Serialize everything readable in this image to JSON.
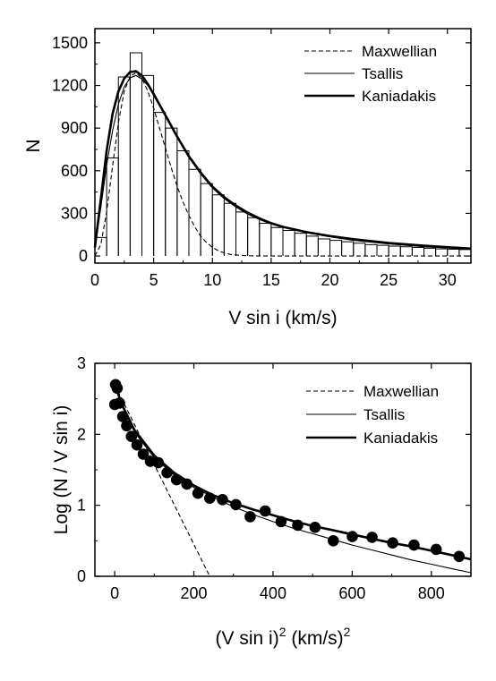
{
  "chart_data": [
    {
      "type": "bar",
      "xlabel": "V sin i (km/s)",
      "ylabel": "N",
      "xlim": [
        0,
        32
      ],
      "ylim": [
        -50,
        1600
      ],
      "xticks": [
        "0",
        "5",
        "10",
        "15",
        "20",
        "25",
        "30"
      ],
      "yticks": [
        "0",
        "300",
        "600",
        "900",
        "1200",
        "1500"
      ],
      "grid": false,
      "legend": "top-right",
      "histogram": {
        "bin_width": 1,
        "x": [
          0.5,
          1.5,
          2.5,
          3.5,
          4.5,
          5.5,
          6.5,
          7.5,
          8.5,
          9.5,
          10.5,
          11.5,
          12.5,
          13.5,
          14.5,
          15.5,
          16.5,
          17.5,
          18.5,
          19.5,
          20.5,
          21.5,
          22.5,
          23.5,
          24.5,
          25.5,
          26.5,
          27.5,
          28.5,
          29.5,
          30.5,
          31.5
        ],
        "values": [
          130,
          690,
          1260,
          1430,
          1270,
          1010,
          900,
          740,
          610,
          510,
          430,
          370,
          310,
          270,
          230,
          200,
          180,
          160,
          140,
          120,
          110,
          100,
          90,
          80,
          75,
          70,
          65,
          60,
          55,
          50,
          48,
          45
        ]
      },
      "series": [
        {
          "name": "Maxwellian",
          "style": "dashed",
          "x": [
            0,
            0.5,
            1,
            1.5,
            2,
            2.5,
            3,
            3.5,
            4,
            4.5,
            5,
            5.5,
            6,
            6.5,
            7,
            7.5,
            8,
            8.5,
            9,
            9.5,
            10,
            10.5,
            11,
            11.5,
            12,
            12.5,
            13,
            14,
            15,
            16,
            17,
            18,
            20,
            25,
            32
          ],
          "values": [
            0,
            80,
            310,
            630,
            940,
            1160,
            1265,
            1290,
            1250,
            1160,
            1040,
            900,
            760,
            620,
            490,
            380,
            285,
            205,
            140,
            95,
            60,
            37,
            22,
            12,
            7,
            4,
            2,
            0,
            0,
            0,
            0,
            0,
            0,
            0,
            0
          ]
        },
        {
          "name": "Tsallis",
          "style": "thin",
          "x": [
            0,
            0.5,
            1,
            1.5,
            2,
            2.5,
            3,
            3.5,
            4,
            4.5,
            5,
            6,
            7,
            8,
            9,
            10,
            11,
            12,
            13,
            14,
            15,
            16,
            18,
            20,
            22,
            25,
            28,
            32
          ],
          "values": [
            60,
            340,
            640,
            880,
            1070,
            1190,
            1255,
            1270,
            1245,
            1200,
            1130,
            985,
            845,
            710,
            595,
            495,
            420,
            360,
            310,
            270,
            235,
            205,
            165,
            135,
            110,
            85,
            65,
            48
          ]
        },
        {
          "name": "Kaniadakis",
          "style": "thick",
          "x": [
            0,
            0.5,
            1,
            1.5,
            2,
            2.5,
            3,
            3.5,
            4,
            4.5,
            5,
            6,
            7,
            8,
            9,
            10,
            11,
            12,
            13,
            14,
            15,
            16,
            18,
            20,
            22,
            25,
            28,
            32
          ],
          "values": [
            60,
            400,
            740,
            1000,
            1160,
            1250,
            1295,
            1300,
            1270,
            1210,
            1140,
            990,
            840,
            700,
            585,
            485,
            410,
            350,
            300,
            262,
            230,
            205,
            168,
            140,
            118,
            92,
            72,
            52
          ]
        }
      ]
    },
    {
      "type": "scatter",
      "xlabel": "(V sin i)",
      "xlabel_sup1": "2",
      "xlabel_units": " (km/s)",
      "xlabel_sup2": "2",
      "ylabel": "Log (N / V sin i)",
      "xlim": [
        -50,
        900
      ],
      "ylim": [
        0,
        3
      ],
      "xticks": [
        "0",
        "200",
        "400",
        "600",
        "800"
      ],
      "yticks": [
        "0",
        "1",
        "2",
        "3"
      ],
      "grid": false,
      "legend": "top-right",
      "points": {
        "x": [
          0.25,
          2.25,
          6.25,
          12.25,
          20.25,
          30.25,
          42.25,
          56.25,
          72.25,
          90.25,
          110.25,
          132.25,
          156.25,
          182.25,
          210.25,
          240.25,
          272.25,
          306.25,
          342.25,
          380.25,
          420.25,
          462.25,
          506.25,
          552.25,
          600.25,
          650.25,
          702.25,
          756.25,
          812.25,
          870.25
        ],
        "y": [
          2.42,
          2.7,
          2.65,
          2.44,
          2.25,
          2.12,
          1.97,
          1.85,
          1.72,
          1.62,
          1.6,
          1.46,
          1.36,
          1.3,
          1.17,
          1.1,
          1.08,
          1.01,
          0.84,
          0.92,
          0.77,
          0.72,
          0.69,
          0.5,
          0.56,
          0.55,
          0.47,
          0.44,
          0.38,
          0.28
        ]
      },
      "series": [
        {
          "name": "Maxwellian",
          "style": "dashed",
          "x": [
            0,
            240
          ],
          "values": [
            2.7,
            0.0
          ]
        },
        {
          "name": "Tsallis",
          "style": "thin",
          "x": [
            0,
            20,
            50,
            100,
            150,
            200,
            250,
            300,
            350,
            400,
            450,
            500,
            550,
            600,
            650,
            700,
            750,
            800,
            850,
            900
          ],
          "values": [
            2.7,
            2.38,
            2.03,
            1.67,
            1.43,
            1.25,
            1.11,
            0.98,
            0.87,
            0.77,
            0.68,
            0.6,
            0.52,
            0.44,
            0.37,
            0.3,
            0.23,
            0.17,
            0.11,
            0.05
          ]
        },
        {
          "name": "Kaniadakis",
          "style": "thick",
          "x": [
            0,
            20,
            50,
            100,
            150,
            200,
            250,
            300,
            350,
            400,
            450,
            500,
            550,
            600,
            650,
            700,
            750,
            800,
            850,
            900
          ],
          "values": [
            2.7,
            2.4,
            2.06,
            1.7,
            1.46,
            1.28,
            1.14,
            1.03,
            0.94,
            0.86,
            0.78,
            0.71,
            0.65,
            0.59,
            0.53,
            0.47,
            0.42,
            0.36,
            0.3,
            0.24
          ]
        }
      ]
    }
  ]
}
